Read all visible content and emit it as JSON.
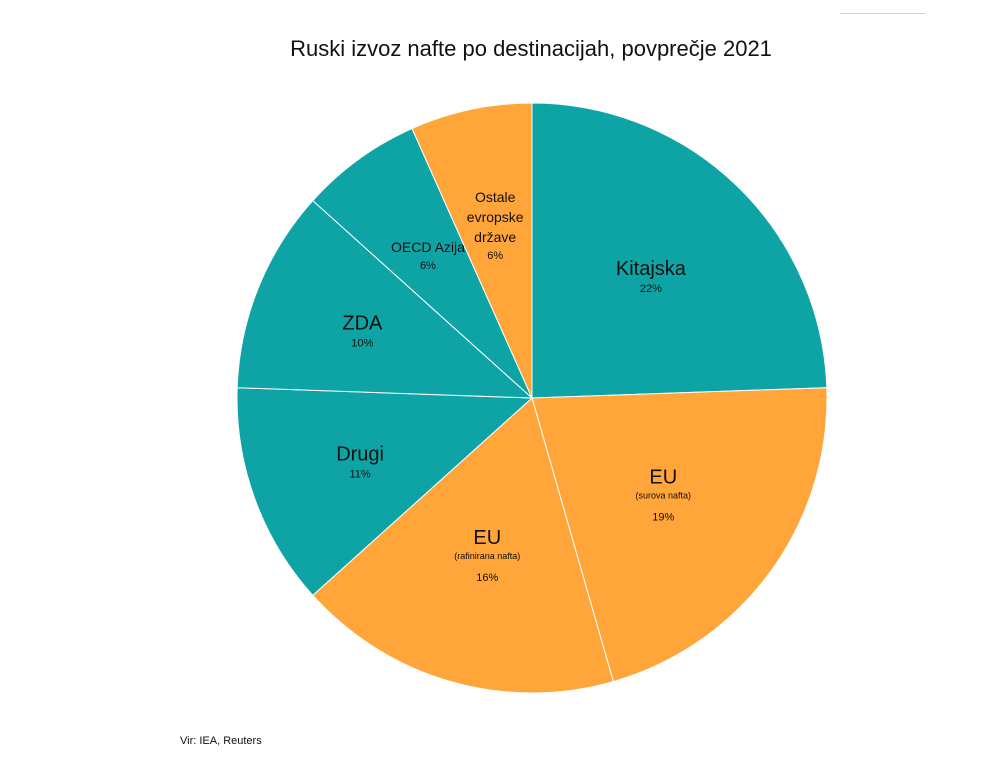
{
  "chart_data": {
    "type": "pie",
    "title": "Ruski izvoz nafte po destinacijah, povprečje 2021",
    "source": "Vir: IEA, Reuters",
    "colors": {
      "teal": "#0ea3a5",
      "orange": "#ffa53a"
    },
    "slices": [
      {
        "name": [
          "Kitajska"
        ],
        "sub": "",
        "pct_label": "22%",
        "value": 22,
        "color": "teal"
      },
      {
        "name": [
          "EU"
        ],
        "sub": "(surova nafta)",
        "pct_label": "19%",
        "value": 19,
        "color": "orange"
      },
      {
        "name": [
          "EU"
        ],
        "sub": "(rafinirana nafta)",
        "pct_label": "16%",
        "value": 16,
        "color": "orange"
      },
      {
        "name": [
          "Drugi"
        ],
        "sub": "",
        "pct_label": "11%",
        "value": 11,
        "color": "teal"
      },
      {
        "name": [
          "ZDA"
        ],
        "sub": "",
        "pct_label": "10%",
        "value": 10,
        "color": "teal"
      },
      {
        "name": [
          "OECD Azija"
        ],
        "sub": "",
        "pct_label": "6%",
        "value": 6,
        "color": "teal"
      },
      {
        "name": [
          "Ostale",
          "evropske",
          "države"
        ],
        "sub": "",
        "pct_label": "6%",
        "value": 6,
        "color": "orange"
      }
    ]
  }
}
